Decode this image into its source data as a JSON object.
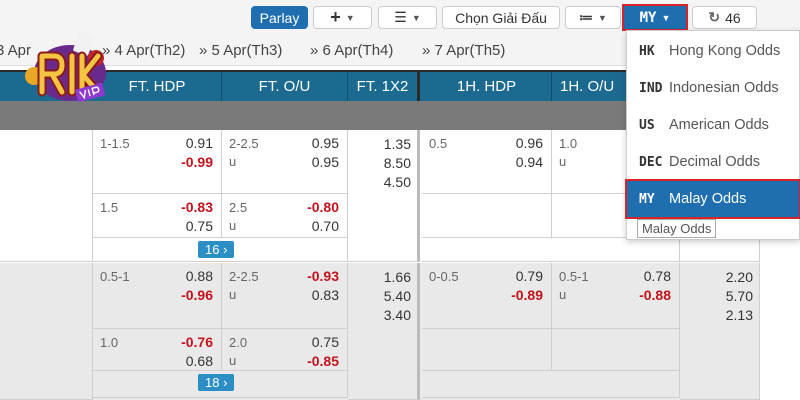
{
  "toolbar": {
    "parlay": "Parlay",
    "add_icon": "plus-icon",
    "sort_icon": "sort-icon",
    "league": "Chọn Giải Đấu",
    "list_icon": "list-icon",
    "odds_type": "MY",
    "refresh_icon": "refresh-icon",
    "refresh_count": "46"
  },
  "logo": {
    "text": "RIK",
    "sub": "VIP"
  },
  "dates": [
    "3 Apr",
    "» 4 Apr(Th2)",
    "» 5 Apr(Th3)",
    "» 6 Apr(Th4)",
    "» 7 Apr(Th5)"
  ],
  "columns": [
    "FT. HDP",
    "FT. O/U",
    "FT. 1X2",
    "1H. HDP",
    "1H. O/U"
  ],
  "odds_menu": [
    {
      "code": "HK",
      "label": "Hong Kong Odds"
    },
    {
      "code": "IND",
      "label": "Indonesian Odds"
    },
    {
      "code": "US",
      "label": "American Odds"
    },
    {
      "code": "DEC",
      "label": "Decimal Odds"
    },
    {
      "code": "MY",
      "label": "Malay Odds"
    }
  ],
  "tooltip": "Malay Odds",
  "rows": [
    {
      "ft_hdp": {
        "line": "1-1.5",
        "a": "0.91",
        "b": "-0.99"
      },
      "ft_ou": {
        "line": "2-2.5",
        "u": "u",
        "a": "0.95",
        "b": "0.95"
      },
      "ft_1x2": [
        "1.35",
        "8.50",
        "4.50"
      ],
      "h1_hdp": {
        "line": "0.5",
        "a": "0.96",
        "b": "0.94"
      },
      "h1_ou": {
        "line": "1.0",
        "u": "u"
      },
      "sub": {
        "ft_hdp": {
          "line": "1.5",
          "a": "-0.83",
          "b": "0.75"
        },
        "ft_ou": {
          "line": "2.5",
          "u": "u",
          "a": "-0.80",
          "b": "0.70"
        }
      },
      "more": "16 ›"
    },
    {
      "ft_hdp": {
        "line": "0.5-1",
        "a": "0.88",
        "b": "-0.96"
      },
      "ft_ou": {
        "line": "2-2.5",
        "u": "u",
        "a": "-0.93",
        "b": "0.83"
      },
      "ft_1x2": [
        "1.66",
        "5.40",
        "3.40"
      ],
      "h1_hdp": {
        "line": "0-0.5",
        "a": "0.79",
        "b": "-0.89"
      },
      "h1_ou": {
        "line": "0.5-1",
        "u": "u",
        "a": "0.78",
        "b": "-0.88"
      },
      "h1_1x2": [
        "2.20",
        "5.70",
        "2.13"
      ],
      "sub": {
        "ft_hdp": {
          "line": "1.0",
          "a": "-0.76",
          "b": "0.68"
        },
        "ft_ou": {
          "line": "2.0",
          "u": "u",
          "a": "0.75",
          "b": "-0.85"
        }
      },
      "more": "18 ›"
    }
  ],
  "colors": {
    "header": "#1c6a90",
    "accent": "#1f6fb0",
    "negative": "#c3121c",
    "highlight": "#d8232a"
  }
}
